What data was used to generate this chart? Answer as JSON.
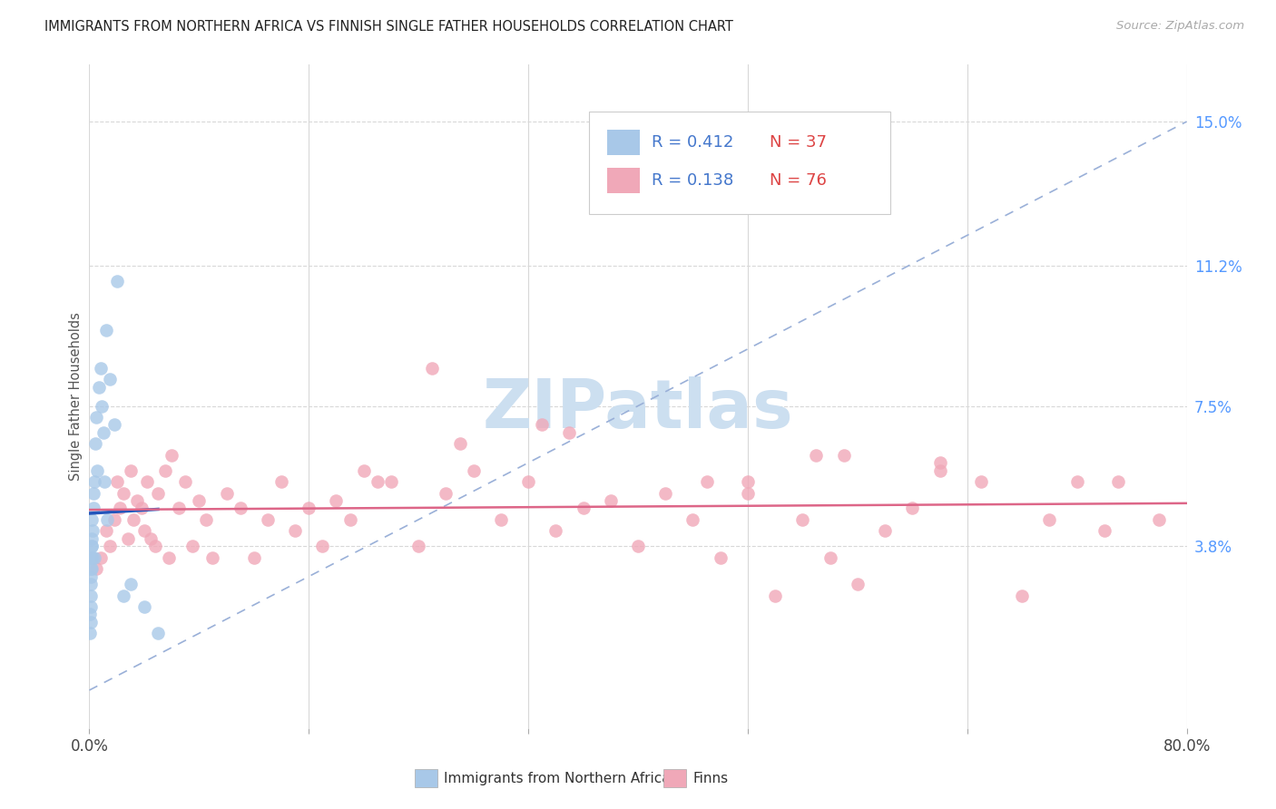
{
  "title": "IMMIGRANTS FROM NORTHERN AFRICA VS FINNISH SINGLE FATHER HOUSEHOLDS CORRELATION CHART",
  "source": "Source: ZipAtlas.com",
  "ylabel": "Single Father Households",
  "xlim": [
    0,
    80
  ],
  "ylim": [
    -1.0,
    16.5
  ],
  "xtick_positions": [
    0,
    16,
    32,
    48,
    64,
    80
  ],
  "xtick_labels": [
    "0.0%",
    "",
    "",
    "",
    "",
    "80.0%"
  ],
  "ytick_values": [
    3.8,
    7.5,
    11.2,
    15.0
  ],
  "ytick_labels": [
    "3.8%",
    "7.5%",
    "11.2%",
    "15.0%"
  ],
  "background_color": "#ffffff",
  "grid_color": "#d8d8d8",
  "series1_color": "#a8c8e8",
  "series2_color": "#f0a8b8",
  "series1_trend_color": "#2255bb",
  "series2_trend_color": "#dd6688",
  "series1_label": "Immigrants from Northern Africa",
  "series2_label": "Finns",
  "series1_R": "0.412",
  "series1_N": "37",
  "series2_R": "0.138",
  "series2_N": "76",
  "diag_color": "#9ab0d8",
  "watermark_color": "#ccdff0",
  "R_text_color": "#4477cc",
  "N_text_color": "#dd4444",
  "blue_x": [
    0.05,
    0.07,
    0.08,
    0.09,
    0.1,
    0.11,
    0.12,
    0.13,
    0.14,
    0.15,
    0.16,
    0.17,
    0.18,
    0.2,
    0.22,
    0.25,
    0.28,
    0.3,
    0.35,
    0.4,
    0.45,
    0.5,
    0.6,
    0.7,
    0.8,
    0.9,
    1.0,
    1.2,
    1.5,
    1.8,
    2.0,
    2.5,
    3.0,
    4.0,
    5.0,
    1.1,
    1.3
  ],
  "blue_y": [
    2.0,
    1.5,
    2.2,
    1.8,
    3.0,
    2.5,
    3.2,
    2.8,
    3.5,
    3.8,
    3.2,
    4.0,
    3.8,
    4.5,
    4.2,
    3.5,
    4.8,
    5.2,
    5.5,
    3.5,
    6.5,
    7.2,
    5.8,
    8.0,
    8.5,
    7.5,
    6.8,
    9.5,
    8.2,
    7.0,
    10.8,
    2.5,
    2.8,
    2.2,
    1.5,
    5.5,
    4.5
  ],
  "pink_x": [
    0.5,
    0.8,
    1.2,
    1.5,
    1.8,
    2.0,
    2.2,
    2.5,
    2.8,
    3.0,
    3.2,
    3.5,
    3.8,
    4.0,
    4.2,
    4.5,
    4.8,
    5.0,
    5.5,
    5.8,
    6.0,
    6.5,
    7.0,
    7.5,
    8.0,
    8.5,
    9.0,
    10.0,
    11.0,
    12.0,
    13.0,
    14.0,
    15.0,
    16.0,
    17.0,
    18.0,
    19.0,
    20.0,
    21.0,
    22.0,
    24.0,
    25.0,
    26.0,
    28.0,
    30.0,
    32.0,
    33.0,
    34.0,
    35.0,
    36.0,
    38.0,
    40.0,
    42.0,
    44.0,
    46.0,
    48.0,
    50.0,
    52.0,
    53.0,
    54.0,
    56.0,
    58.0,
    60.0,
    62.0,
    65.0,
    68.0,
    70.0,
    72.0,
    74.0,
    75.0,
    78.0,
    27.0,
    45.0,
    55.0,
    62.0,
    48.0
  ],
  "pink_y": [
    3.2,
    3.5,
    4.2,
    3.8,
    4.5,
    5.5,
    4.8,
    5.2,
    4.0,
    5.8,
    4.5,
    5.0,
    4.8,
    4.2,
    5.5,
    4.0,
    3.8,
    5.2,
    5.8,
    3.5,
    6.2,
    4.8,
    5.5,
    3.8,
    5.0,
    4.5,
    3.5,
    5.2,
    4.8,
    3.5,
    4.5,
    5.5,
    4.2,
    4.8,
    3.8,
    5.0,
    4.5,
    5.8,
    5.5,
    5.5,
    3.8,
    8.5,
    5.2,
    5.8,
    4.5,
    5.5,
    7.0,
    4.2,
    6.8,
    4.8,
    5.0,
    3.8,
    5.2,
    4.5,
    3.5,
    5.5,
    2.5,
    4.5,
    6.2,
    3.5,
    2.8,
    4.2,
    4.8,
    6.0,
    5.5,
    2.5,
    4.5,
    5.5,
    4.2,
    5.5,
    4.5,
    6.5,
    5.5,
    6.2,
    5.8,
    5.2
  ]
}
